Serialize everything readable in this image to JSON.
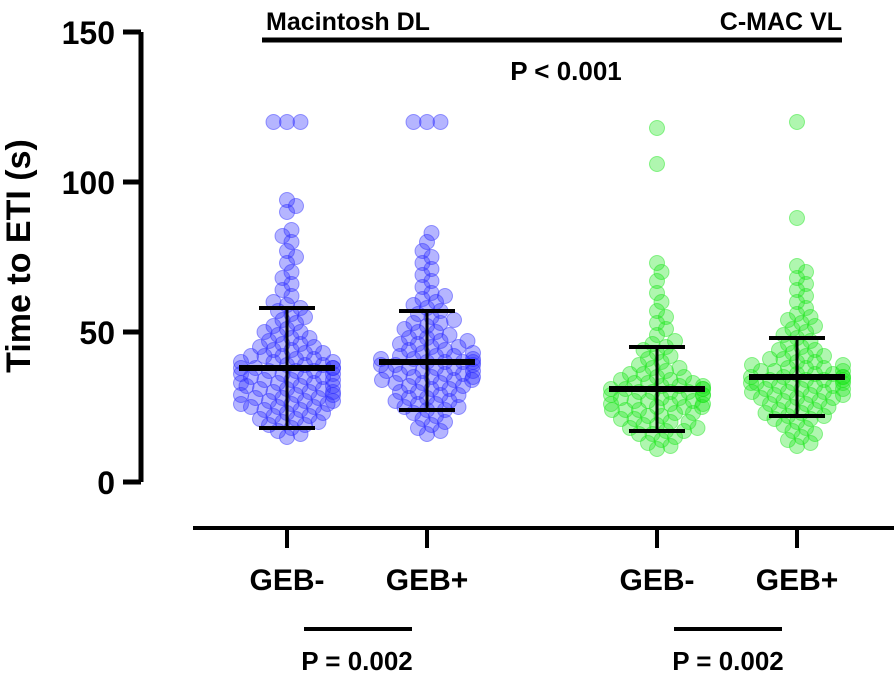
{
  "chart_data": {
    "type": "scatter",
    "subtype": "dot-plot-with-median-iqr",
    "title": "",
    "xlabel": "",
    "ylabel": "Time to ETI (s)",
    "ylim": [
      0,
      150
    ],
    "yticks": [
      0,
      50,
      100,
      150
    ],
    "grid": false,
    "legend": "none",
    "device_groups": [
      {
        "label": "Macintosh DL",
        "color": "#2b2bff"
      },
      {
        "label": "C-MAC VL",
        "color": "#19e619"
      }
    ],
    "overall_comparison": {
      "label": "P < 0.001"
    },
    "categories": [
      "GEB-",
      "GEB+",
      "GEB-",
      "GEB+"
    ],
    "series": [
      {
        "category": "GEB-",
        "device": "Macintosh DL",
        "median": 38,
        "whisker_low": 18,
        "whisker_high": 58,
        "values": [
          120,
          120,
          120,
          94,
          92,
          90,
          84,
          82,
          80,
          77,
          75,
          73,
          70,
          68,
          66,
          64,
          62,
          60,
          59,
          58,
          57,
          56,
          55,
          54,
          53,
          52,
          51,
          50,
          50,
          49,
          48,
          48,
          47,
          46,
          46,
          45,
          45,
          44,
          44,
          43,
          43,
          42,
          42,
          42,
          41,
          41,
          40,
          40,
          40,
          39,
          39,
          39,
          38,
          38,
          38,
          38,
          37,
          37,
          37,
          36,
          36,
          36,
          35,
          35,
          35,
          34,
          34,
          34,
          33,
          33,
          33,
          32,
          32,
          32,
          31,
          31,
          31,
          30,
          30,
          30,
          29,
          29,
          29,
          28,
          28,
          28,
          27,
          27,
          27,
          26,
          26,
          26,
          25,
          25,
          25,
          24,
          24,
          23,
          23,
          22,
          22,
          21,
          21,
          20,
          20,
          19,
          19,
          18,
          17,
          16,
          15
        ]
      },
      {
        "category": "GEB+",
        "device": "Macintosh DL",
        "median": 40,
        "whisker_low": 24,
        "whisker_high": 57,
        "values": [
          120,
          120,
          120,
          83,
          80,
          77,
          75,
          73,
          71,
          69,
          67,
          65,
          63,
          62,
          61,
          60,
          59,
          58,
          57,
          56,
          55,
          54,
          53,
          53,
          52,
          51,
          50,
          50,
          49,
          48,
          48,
          47,
          47,
          46,
          46,
          45,
          45,
          44,
          44,
          43,
          43,
          42,
          42,
          42,
          41,
          41,
          41,
          40,
          40,
          40,
          40,
          39,
          39,
          39,
          38,
          38,
          38,
          37,
          37,
          37,
          36,
          36,
          36,
          35,
          35,
          35,
          34,
          34,
          34,
          33,
          33,
          33,
          32,
          32,
          31,
          31,
          30,
          30,
          29,
          29,
          28,
          28,
          27,
          27,
          26,
          26,
          25,
          25,
          24,
          24,
          23,
          22,
          21,
          20,
          19,
          18,
          17,
          16
        ]
      },
      {
        "category": "GEB-",
        "device": "C-MAC VL",
        "median": 31,
        "whisker_low": 17,
        "whisker_high": 45,
        "values": [
          118,
          106,
          73,
          70,
          67,
          63,
          60,
          57,
          55,
          53,
          51,
          49,
          47,
          46,
          45,
          44,
          43,
          42,
          41,
          40,
          39,
          38,
          38,
          37,
          36,
          36,
          35,
          35,
          34,
          34,
          33,
          33,
          33,
          32,
          32,
          32,
          31,
          31,
          31,
          31,
          30,
          30,
          30,
          30,
          29,
          29,
          29,
          28,
          28,
          28,
          27,
          27,
          27,
          26,
          26,
          26,
          25,
          25,
          25,
          24,
          24,
          24,
          23,
          23,
          22,
          22,
          21,
          21,
          20,
          20,
          19,
          19,
          18,
          18,
          17,
          17,
          16,
          16,
          15,
          14,
          13,
          12,
          11
        ]
      },
      {
        "category": "GEB+",
        "device": "C-MAC VL",
        "median": 35,
        "whisker_low": 22,
        "whisker_high": 48,
        "values": [
          120,
          88,
          72,
          70,
          68,
          66,
          64,
          62,
          60,
          58,
          56,
          55,
          54,
          53,
          52,
          51,
          50,
          49,
          48,
          47,
          46,
          45,
          44,
          44,
          43,
          42,
          42,
          41,
          41,
          40,
          40,
          39,
          39,
          38,
          38,
          38,
          37,
          37,
          37,
          36,
          36,
          36,
          35,
          35,
          35,
          35,
          34,
          34,
          34,
          34,
          33,
          33,
          33,
          33,
          32,
          32,
          32,
          31,
          31,
          31,
          30,
          30,
          30,
          29,
          29,
          29,
          28,
          28,
          28,
          27,
          27,
          26,
          26,
          25,
          25,
          24,
          24,
          23,
          23,
          22,
          22,
          21,
          21,
          20,
          19,
          18,
          17,
          16,
          15,
          14,
          13,
          12
        ]
      }
    ],
    "pairwise_comparisons": [
      {
        "device": "Macintosh DL",
        "label": "P = 0.002"
      },
      {
        "device": "C-MAC VL",
        "label": "P = 0.002"
      }
    ]
  }
}
